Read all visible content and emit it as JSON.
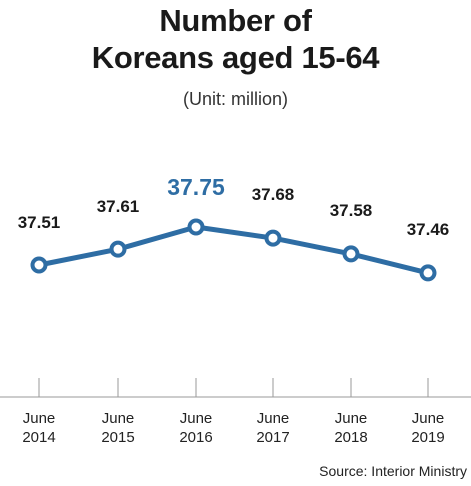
{
  "header": {
    "title_line1": "Number of",
    "title_line2": "Koreans aged 15-64",
    "unit": "(Unit: million)"
  },
  "footer": {
    "source": "Source: Interior Ministry"
  },
  "chart_data": {
    "type": "line",
    "title": "Number of Koreans aged 15-64",
    "subtitle": "(Unit: million)",
    "categories": [
      "June 2014",
      "June 2015",
      "June 2016",
      "June 2017",
      "June 2018",
      "June 2019"
    ],
    "tick_labels": [
      [
        "June",
        "2014"
      ],
      [
        "June",
        "2015"
      ],
      [
        "June",
        "2016"
      ],
      [
        "June",
        "2017"
      ],
      [
        "June",
        "2018"
      ],
      [
        "June",
        "2019"
      ]
    ],
    "values": [
      37.51,
      37.61,
      37.75,
      37.68,
      37.58,
      37.46
    ],
    "value_labels": [
      "37.51",
      "37.61",
      "37.75",
      "37.68",
      "37.58",
      "37.46"
    ],
    "highlight_index": 2,
    "colors": {
      "line": "#2e6da4",
      "highlight_label": "#2e6da4",
      "label": "#1a1a1a",
      "marker_fill": "#ffffff"
    },
    "grid": false,
    "legend": "none",
    "source": "Source: Interior Ministry"
  }
}
